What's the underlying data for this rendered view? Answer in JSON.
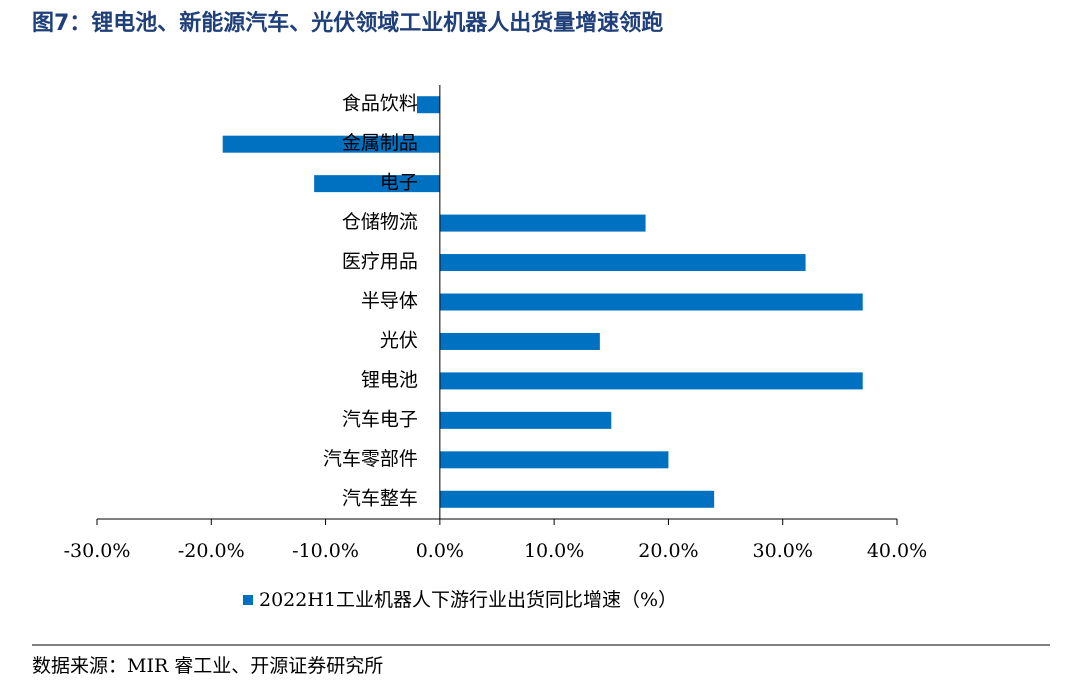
{
  "chart_data": {
    "type": "barh",
    "title": "图7：锂电池、新能源汽车、光伏领域工业机器人出货量增速领跑",
    "categories": [
      "食品饮料",
      "金属制品",
      "电子",
      "仓储物流",
      "医疗用品",
      "半导体",
      "光伏",
      "锂电池",
      "汽车电子",
      "汽车零部件",
      "汽车整车"
    ],
    "series": [
      {
        "name": "2022H1工业机器人下游行业出货同比增速（%）",
        "color": "#0070c0",
        "values": [
          -2,
          -19,
          -11,
          18,
          32,
          37,
          14,
          37,
          15,
          20,
          24
        ]
      }
    ],
    "xlim": [
      -30,
      40
    ],
    "xticks": [
      {
        "value": -30,
        "label": "-30.0%"
      },
      {
        "value": -20,
        "label": "-20.0%"
      },
      {
        "value": -10,
        "label": "-10.0%"
      },
      {
        "value": 0,
        "label": "0.0%"
      },
      {
        "value": 10,
        "label": "10.0%"
      },
      {
        "value": 20,
        "label": "20.0%"
      },
      {
        "value": 30,
        "label": "30.0%"
      },
      {
        "value": 40,
        "label": "40.0%"
      }
    ],
    "legend": "bottom",
    "source": "数据来源：MIR 睿工业、开源证券研究所"
  }
}
